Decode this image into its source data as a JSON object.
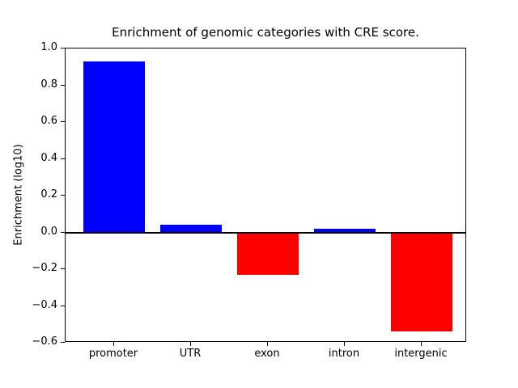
{
  "window": {
    "background": "#ffffff"
  },
  "chart_data": {
    "type": "bar",
    "title": "Enrichment of genomic categories with CRE score.",
    "xlabel": "",
    "ylabel": "Enrichment (log10)",
    "categories": [
      "promoter",
      "UTR",
      "exon",
      "intron",
      "intergenic"
    ],
    "values": [
      0.93,
      0.04,
      -0.23,
      0.02,
      -0.54
    ],
    "positive_color": "#0000ff",
    "negative_color": "#ff0000",
    "ylim": [
      -0.6,
      1.0
    ],
    "yticks": [
      1.0,
      0.8,
      0.6,
      0.4,
      0.2,
      0.0,
      -0.2,
      -0.4,
      -0.6
    ],
    "grid": false,
    "zero_line": true,
    "legend": null,
    "axis_color": "#000000"
  }
}
